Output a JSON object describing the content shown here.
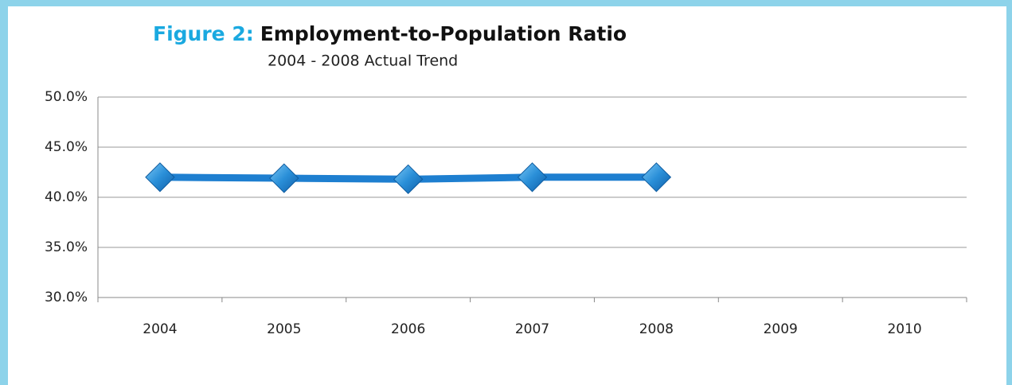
{
  "chart_data": {
    "type": "line",
    "figure_label": "Figure 2:",
    "title": "Employment-to-Population Ratio",
    "subtitle": "2004 - 2008 Actual Trend",
    "categories": [
      "2004",
      "2005",
      "2006",
      "2007",
      "2008",
      "2009",
      "2010"
    ],
    "series": [
      {
        "name": "Employment-to-Population Ratio",
        "color": "#1e7fd0",
        "values": [
          42.0,
          41.9,
          41.8,
          42.0,
          42.0,
          null,
          null
        ]
      }
    ],
    "ylim": [
      30,
      50
    ],
    "yticks": [
      {
        "value": 30,
        "label": "30.0%"
      },
      {
        "value": 35,
        "label": "35.0%"
      },
      {
        "value": 40,
        "label": "40.0%"
      },
      {
        "value": 45,
        "label": "45.0%"
      },
      {
        "value": 50,
        "label": "50.0%"
      }
    ],
    "grid": true
  }
}
